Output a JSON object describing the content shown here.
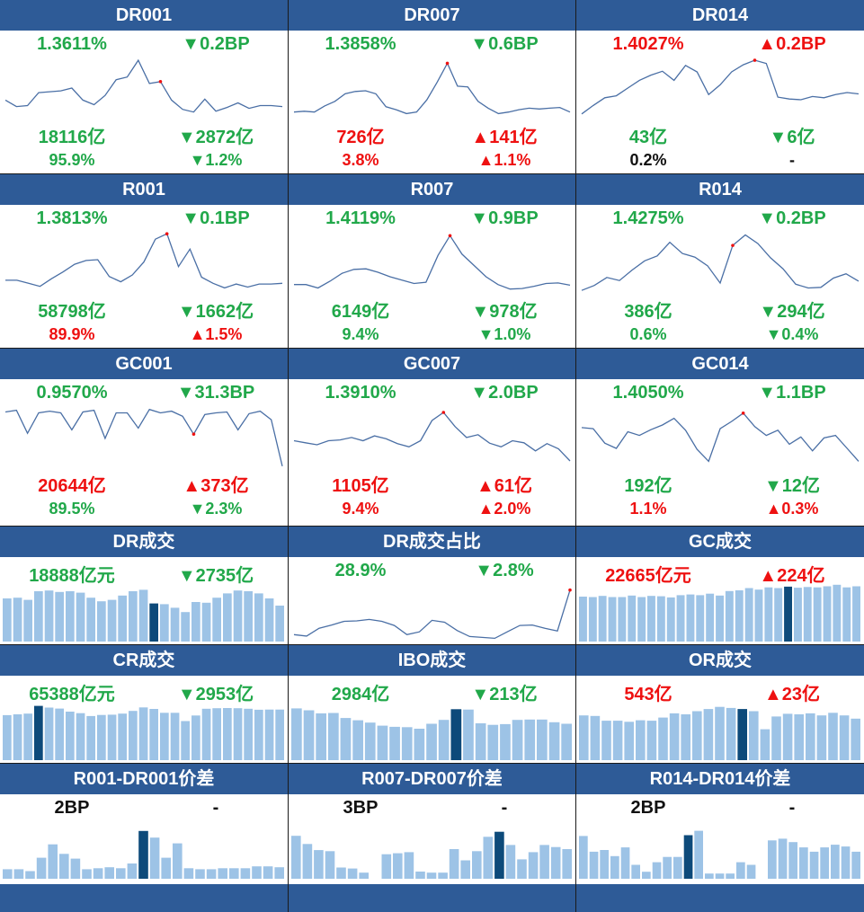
{
  "colors": {
    "header": "#2e5b97",
    "up": "#ee1111",
    "down": "#21a84a",
    "line": "#4a6fa5",
    "bar": "#9dc3e6",
    "bar_hl": "#0d4a7a"
  },
  "panels": [
    {
      "title": "DR001",
      "rate": "1.3611%",
      "rate_color": "down",
      "rate_chg": "▼0.2BP",
      "rate_chg_color": "down",
      "vol": "18116亿",
      "vol_color": "down",
      "vol_chg": "▼2872亿",
      "vol_chg_color": "down",
      "share": "95.9%",
      "share_color": "down",
      "share_chg": "▼1.2%",
      "share_chg_color": "down"
    },
    {
      "title": "DR007",
      "rate": "1.3858%",
      "rate_color": "down",
      "rate_chg": "▼0.6BP",
      "rate_chg_color": "down",
      "vol": "726亿",
      "vol_color": "up",
      "vol_chg": "▲141亿",
      "vol_chg_color": "up",
      "share": "3.8%",
      "share_color": "up",
      "share_chg": "▲1.1%",
      "share_chg_color": "up"
    },
    {
      "title": "DR014",
      "rate": "1.4027%",
      "rate_color": "up",
      "rate_chg": "▲0.2BP",
      "rate_chg_color": "up",
      "vol": "43亿",
      "vol_color": "down",
      "vol_chg": "▼6亿",
      "vol_chg_color": "down",
      "share": "0.2%",
      "share_color": "black",
      "share_chg": "-",
      "share_chg_color": "black"
    },
    {
      "title": "R001",
      "rate": "1.3813%",
      "rate_color": "down",
      "rate_chg": "▼0.1BP",
      "rate_chg_color": "down",
      "vol": "58798亿",
      "vol_color": "down",
      "vol_chg": "▼1662亿",
      "vol_chg_color": "down",
      "share": "89.9%",
      "share_color": "up",
      "share_chg": "▲1.5%",
      "share_chg_color": "up"
    },
    {
      "title": "R007",
      "rate": "1.4119%",
      "rate_color": "down",
      "rate_chg": "▼0.9BP",
      "rate_chg_color": "down",
      "vol": "6149亿",
      "vol_color": "down",
      "vol_chg": "▼978亿",
      "vol_chg_color": "down",
      "share": "9.4%",
      "share_color": "down",
      "share_chg": "▼1.0%",
      "share_chg_color": "down"
    },
    {
      "title": "R014",
      "rate": "1.4275%",
      "rate_color": "down",
      "rate_chg": "▼0.2BP",
      "rate_chg_color": "down",
      "vol": "386亿",
      "vol_color": "down",
      "vol_chg": "▼294亿",
      "vol_chg_color": "down",
      "share": "0.6%",
      "share_color": "down",
      "share_chg": "▼0.4%",
      "share_chg_color": "down"
    },
    {
      "title": "GC001",
      "rate": "0.9570%",
      "rate_color": "down",
      "rate_chg": "▼31.3BP",
      "rate_chg_color": "down",
      "vol": "20644亿",
      "vol_color": "up",
      "vol_chg": "▲373亿",
      "vol_chg_color": "up",
      "share": "89.5%",
      "share_color": "down",
      "share_chg": "▼2.3%",
      "share_chg_color": "down"
    },
    {
      "title": "GC007",
      "rate": "1.3910%",
      "rate_color": "down",
      "rate_chg": "▼2.0BP",
      "rate_chg_color": "down",
      "vol": "1105亿",
      "vol_color": "up",
      "vol_chg": "▲61亿",
      "vol_chg_color": "up",
      "share": "9.4%",
      "share_color": "up",
      "share_chg": "▲2.0%",
      "share_chg_color": "up"
    },
    {
      "title": "GC014",
      "rate": "1.4050%",
      "rate_color": "down",
      "rate_chg": "▼1.1BP",
      "rate_chg_color": "down",
      "vol": "192亿",
      "vol_color": "down",
      "vol_chg": "▼12亿",
      "vol_chg_color": "down",
      "share": "1.1%",
      "share_color": "up",
      "share_chg": "▲0.3%",
      "share_chg_color": "up"
    },
    {
      "title": "DR成交",
      "rate": "18888亿元",
      "rate_color": "down",
      "rate_chg": "▼2735亿",
      "rate_chg_color": "down"
    },
    {
      "title": "DR成交占比",
      "rate": "28.9%",
      "rate_color": "down",
      "rate_chg": "▼2.8%",
      "rate_chg_color": "down"
    },
    {
      "title": "GC成交",
      "rate": "22665亿元",
      "rate_color": "up",
      "rate_chg": "▲224亿",
      "rate_chg_color": "up"
    },
    {
      "title": "CR成交",
      "rate": "65388亿元",
      "rate_color": "down",
      "rate_chg": "▼2953亿",
      "rate_chg_color": "down"
    },
    {
      "title": "IBO成交",
      "rate": "2984亿",
      "rate_color": "down",
      "rate_chg": "▼213亿",
      "rate_chg_color": "down"
    },
    {
      "title": "OR成交",
      "rate": "543亿",
      "rate_color": "up",
      "rate_chg": "▲23亿",
      "rate_chg_color": "up"
    },
    {
      "title": "R001-DR001价差",
      "rate": "2BP",
      "rate_color": "black",
      "rate_chg": "-",
      "rate_chg_color": "black"
    },
    {
      "title": "R007-DR007价差",
      "rate": "3BP",
      "rate_color": "black",
      "rate_chg": "-",
      "rate_chg_color": "black"
    },
    {
      "title": "R014-DR014价差",
      "rate": "2BP",
      "rate_color": "black",
      "rate_chg": "-",
      "rate_chg_color": "black"
    }
  ],
  "chart_data": [
    {
      "type": "line",
      "title": "DR001",
      "values": [
        1.352,
        1.345,
        1.346,
        1.36,
        1.361,
        1.362,
        1.365,
        1.352,
        1.347,
        1.357,
        1.374,
        1.377,
        1.395,
        1.37,
        1.372,
        1.352,
        1.342,
        1.339,
        1.353,
        1.34,
        1.344,
        1.349,
        1.343,
        1.346,
        1.346,
        1.345
      ],
      "highlight_index": 14,
      "ylim": [
        1.33,
        1.4
      ]
    },
    {
      "type": "line",
      "title": "DR007",
      "values": [
        1.346,
        1.347,
        1.346,
        1.354,
        1.36,
        1.37,
        1.373,
        1.374,
        1.37,
        1.353,
        1.349,
        1.344,
        1.346,
        1.362,
        1.385,
        1.41,
        1.38,
        1.379,
        1.36,
        1.351,
        1.344,
        1.346,
        1.349,
        1.351,
        1.35,
        1.351,
        1.352,
        1.346
      ],
      "highlight_index": 15,
      "ylim": [
        1.335,
        1.42
      ]
    },
    {
      "type": "line",
      "title": "DR014",
      "values": [
        1.32,
        1.333,
        1.345,
        1.348,
        1.36,
        1.372,
        1.38,
        1.386,
        1.372,
        1.395,
        1.385,
        1.35,
        1.365,
        1.385,
        1.396,
        1.403,
        1.398,
        1.346,
        1.343,
        1.342,
        1.347,
        1.345,
        1.35,
        1.353,
        1.351
      ],
      "highlight_index": 15,
      "ylim": [
        1.31,
        1.41
      ]
    },
    {
      "type": "line",
      "title": "R001",
      "values": [
        1.354,
        1.354,
        1.35,
        1.346,
        1.356,
        1.365,
        1.375,
        1.38,
        1.381,
        1.359,
        1.352,
        1.361,
        1.378,
        1.408,
        1.415,
        1.372,
        1.395,
        1.358,
        1.35,
        1.344,
        1.349,
        1.345,
        1.349,
        1.349,
        1.35
      ],
      "highlight_index": 14,
      "ylim": [
        1.335,
        1.42
      ]
    },
    {
      "type": "line",
      "title": "R007",
      "values": [
        1.358,
        1.358,
        1.352,
        1.364,
        1.378,
        1.385,
        1.386,
        1.38,
        1.372,
        1.366,
        1.36,
        1.362,
        1.41,
        1.445,
        1.412,
        1.392,
        1.372,
        1.358,
        1.35,
        1.351,
        1.355,
        1.36,
        1.361,
        1.357
      ],
      "highlight_index": 13,
      "ylim": [
        1.34,
        1.455
      ]
    },
    {
      "type": "line",
      "title": "R014",
      "values": [
        1.392,
        1.4,
        1.413,
        1.408,
        1.425,
        1.44,
        1.448,
        1.47,
        1.452,
        1.446,
        1.432,
        1.404,
        1.465,
        1.482,
        1.468,
        1.445,
        1.427,
        1.402,
        1.396,
        1.397,
        1.412,
        1.419,
        1.407
      ],
      "highlight_index": 12,
      "ylim": [
        1.385,
        1.49
      ]
    },
    {
      "type": "line",
      "title": "GC001",
      "values": [
        1.275,
        1.285,
        1.15,
        1.27,
        1.28,
        1.27,
        1.17,
        1.275,
        1.285,
        1.12,
        1.27,
        1.27,
        1.18,
        1.29,
        1.27,
        1.28,
        1.25,
        1.145,
        1.26,
        1.27,
        1.275,
        1.17,
        1.265,
        1.28,
        1.23,
        0.957
      ],
      "highlight_index": 17,
      "ylim": [
        0.94,
        1.32
      ]
    },
    {
      "type": "line",
      "title": "GC007",
      "values": [
        1.29,
        1.285,
        1.28,
        1.29,
        1.292,
        1.298,
        1.29,
        1.302,
        1.295,
        1.283,
        1.275,
        1.29,
        1.34,
        1.36,
        1.325,
        1.298,
        1.305,
        1.284,
        1.275,
        1.29,
        1.285,
        1.265,
        1.283,
        1.27,
        1.24
      ],
      "highlight_index": 13,
      "ylim": [
        1.22,
        1.38
      ]
    },
    {
      "type": "line",
      "title": "GC014",
      "values": [
        1.36,
        1.358,
        1.33,
        1.32,
        1.352,
        1.345,
        1.356,
        1.365,
        1.378,
        1.355,
        1.318,
        1.295,
        1.358,
        1.372,
        1.388,
        1.362,
        1.345,
        1.355,
        1.328,
        1.342,
        1.315,
        1.34,
        1.345,
        1.32,
        1.295
      ],
      "highlight_index": 14,
      "ylim": [
        1.28,
        1.405
      ]
    },
    {
      "type": "bar",
      "title": "DR成交",
      "values": [
        21000,
        21100,
        20800,
        22000,
        22100,
        21900,
        22000,
        21800,
        21100,
        20600,
        20800,
        21400,
        22000,
        22200,
        20300,
        20200,
        19700,
        19100,
        20500,
        20400,
        21100,
        21700,
        22100,
        22000,
        21700,
        21000,
        20000
      ],
      "highlight_index": 14,
      "ylim": [
        15000,
        23000
      ]
    },
    {
      "type": "line",
      "title": "DR成交占比",
      "values": [
        22.0,
        21.7,
        23.4,
        24.1,
        24.9,
        25.0,
        25.3,
        24.9,
        24.0,
        22.0,
        22.6,
        25.1,
        24.7,
        22.9,
        21.6,
        21.4,
        21.2,
        22.6,
        24.0,
        24.1,
        23.4,
        22.8,
        31.7
      ],
      "highlight_index": 22,
      "ylim": [
        20.5,
        33.0
      ]
    },
    {
      "type": "bar",
      "title": "GC成交",
      "values": [
        20100,
        20000,
        20300,
        20000,
        20000,
        20400,
        20000,
        20300,
        20200,
        19900,
        20500,
        20700,
        20500,
        20900,
        20400,
        21600,
        21800,
        22400,
        22000,
        22600,
        22400,
        22800,
        22500,
        22700,
        22600,
        22900,
        23300,
        22600,
        22900
      ],
      "highlight_index": 21,
      "ylim": [
        8000,
        23500
      ]
    },
    {
      "type": "bar",
      "title": "CR成交",
      "values": [
        63500,
        63900,
        64300,
        68300,
        67400,
        66900,
        65300,
        64500,
        63000,
        63600,
        63700,
        64300,
        65700,
        67500,
        66700,
        64700,
        64700,
        60400,
        63300,
        66800,
        67100,
        67200,
        67100,
        66800,
        66300,
        66400,
        66400
      ],
      "highlight_index": 3,
      "ylim": [
        40000,
        70000
      ]
    },
    {
      "type": "bar",
      "title": "IBO成交",
      "values": [
        3350,
        3300,
        3220,
        3230,
        3100,
        3040,
        2980,
        2900,
        2870,
        2860,
        2820,
        2950,
        3050,
        3330,
        3320,
        2960,
        2920,
        2940,
        3050,
        3060,
        3060,
        2990,
        2950
      ],
      "highlight_index": 13,
      "ylim": [
        2000,
        3500
      ]
    },
    {
      "type": "bar",
      "title": "OR成交",
      "values": [
        520,
        515,
        470,
        470,
        460,
        475,
        470,
        500,
        540,
        530,
        560,
        580,
        600,
        590,
        580,
        560,
        390,
        510,
        535,
        530,
        540,
        520,
        545,
        520,
        490
      ],
      "highlight_index": 14,
      "ylim": [
        100,
        640
      ]
    },
    {
      "type": "bar",
      "title": "R001-DR001价差",
      "values": [
        1.0,
        1.0,
        0.8,
        2.2,
        3.6,
        2.6,
        2.1,
        1.0,
        1.1,
        1.2,
        1.1,
        1.6,
        5.0,
        4.3,
        2.2,
        3.7,
        1.1,
        1.0,
        1.0,
        1.1,
        1.1,
        1.1,
        1.3,
        1.3,
        1.2
      ],
      "highlight_index": 12,
      "ylim": [
        0,
        6.2
      ]
    },
    {
      "type": "bar",
      "title": "R007-DR007价差",
      "values": [
        4.2,
        3.4,
        2.8,
        2.7,
        1.1,
        1.0,
        0.6,
        0.0,
        2.4,
        2.5,
        2.6,
        0.7,
        0.6,
        0.6,
        2.9,
        1.8,
        2.7,
        4.1,
        4.6,
        3.3,
        1.9,
        2.6,
        3.3,
        3.1,
        2.9
      ],
      "highlight_index": 18,
      "ylim": [
        0,
        5.8
      ]
    },
    {
      "type": "bar",
      "title": "R014-DR014价差",
      "values": [
        4.9,
        3.1,
        3.3,
        2.6,
        3.6,
        1.6,
        0.8,
        1.9,
        2.5,
        2.5,
        5.0,
        5.5,
        0.6,
        0.6,
        0.6,
        1.9,
        1.6,
        0.0,
        4.4,
        4.6,
        4.2,
        3.6,
        3.1,
        3.6,
        3.9,
        3.7,
        3.1
      ],
      "highlight_index": 10,
      "ylim": [
        0,
        6.8
      ]
    }
  ]
}
